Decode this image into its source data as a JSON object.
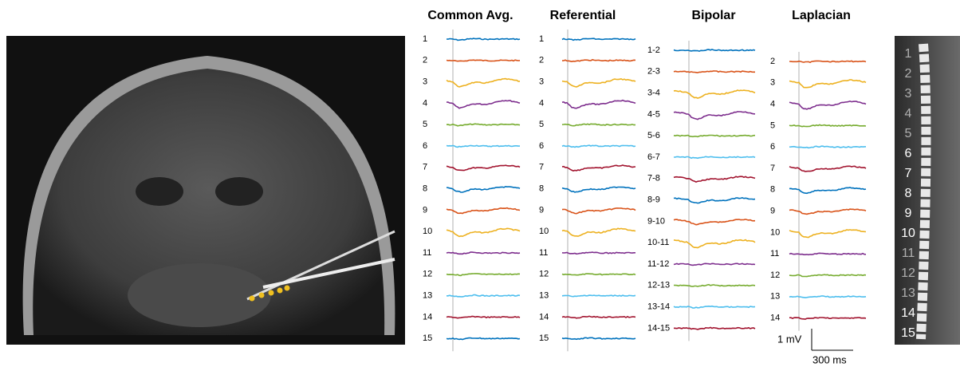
{
  "panels": [
    {
      "title": "Common Avg.",
      "channels": [
        "1",
        "2",
        "3",
        "4",
        "5",
        "6",
        "7",
        "8",
        "9",
        "10",
        "11",
        "12",
        "13",
        "14",
        "15"
      ]
    },
    {
      "title": "Referential",
      "channels": [
        "1",
        "2",
        "3",
        "4",
        "5",
        "6",
        "7",
        "8",
        "9",
        "10",
        "11",
        "12",
        "13",
        "14",
        "15"
      ]
    },
    {
      "title": "Bipolar",
      "channels": [
        "1-2",
        "2-3",
        "3-4",
        "4-5",
        "5-6",
        "6-7",
        "7-8",
        "8-9",
        "9-10",
        "10-11",
        "11-12",
        "12-13",
        "13-14",
        "14-15"
      ]
    },
    {
      "title": "Laplacian",
      "channels": [
        "2",
        "3",
        "4",
        "5",
        "6",
        "7",
        "8",
        "9",
        "10",
        "11",
        "12",
        "13",
        "14"
      ]
    }
  ],
  "scale_bar": {
    "voltage": "1 mV",
    "time": "300 ms"
  },
  "electrode_labels": [
    "1",
    "2",
    "3",
    "4",
    "5",
    "6",
    "7",
    "8",
    "9",
    "10",
    "11",
    "12",
    "13",
    "14",
    "15"
  ]
}
